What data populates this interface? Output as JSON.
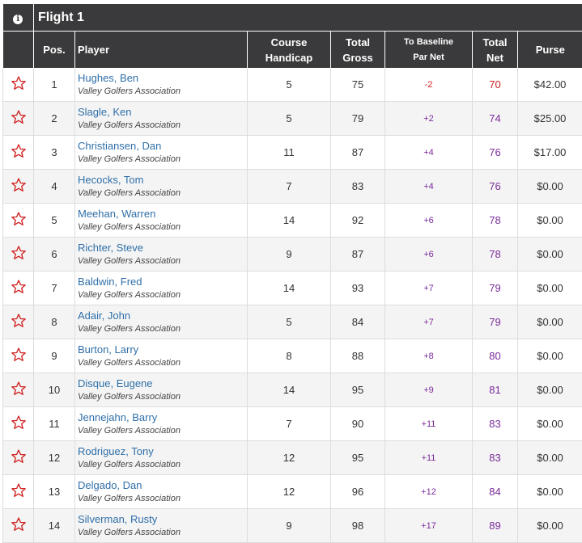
{
  "flight": {
    "title": "Flight 1",
    "info_icon": "info-icon"
  },
  "columns": {
    "pos": "Pos.",
    "player": "Player",
    "course_handicap_1": "Course",
    "course_handicap_2": "Handicap",
    "total_gross_1": "Total",
    "total_gross_2": "Gross",
    "baseline_1": "To Baseline",
    "baseline_2": "Par Net",
    "total_net_1": "Total",
    "total_net_2": "Net",
    "purse": "Purse"
  },
  "colors": {
    "header_bg": "#3a3a3c",
    "link": "#2f6fa8",
    "star": "#d02020",
    "net": "#7a2a9a",
    "negative": "#d02020"
  },
  "rows": [
    {
      "pos": "1",
      "name": "Hughes, Ben",
      "assoc": "Valley Golfers Association",
      "handicap": "5",
      "gross": "75",
      "baseline": "-2",
      "net": "70",
      "purse": "$42.00"
    },
    {
      "pos": "2",
      "name": "Slagle, Ken",
      "assoc": "Valley Golfers Association",
      "handicap": "5",
      "gross": "79",
      "baseline": "+2",
      "net": "74",
      "purse": "$25.00"
    },
    {
      "pos": "3",
      "name": "Christiansen, Dan",
      "assoc": "Valley Golfers Association",
      "handicap": "11",
      "gross": "87",
      "baseline": "+4",
      "net": "76",
      "purse": "$17.00"
    },
    {
      "pos": "4",
      "name": "Hecocks, Tom",
      "assoc": "Valley Golfers Association",
      "handicap": "7",
      "gross": "83",
      "baseline": "+4",
      "net": "76",
      "purse": "$0.00"
    },
    {
      "pos": "5",
      "name": "Meehan, Warren",
      "assoc": "Valley Golfers Association",
      "handicap": "14",
      "gross": "92",
      "baseline": "+6",
      "net": "78",
      "purse": "$0.00"
    },
    {
      "pos": "6",
      "name": "Richter, Steve",
      "assoc": "Valley Golfers Association",
      "handicap": "9",
      "gross": "87",
      "baseline": "+6",
      "net": "78",
      "purse": "$0.00"
    },
    {
      "pos": "7",
      "name": "Baldwin, Fred",
      "assoc": "Valley Golfers Association",
      "handicap": "14",
      "gross": "93",
      "baseline": "+7",
      "net": "79",
      "purse": "$0.00"
    },
    {
      "pos": "8",
      "name": "Adair, John",
      "assoc": "Valley Golfers Association",
      "handicap": "5",
      "gross": "84",
      "baseline": "+7",
      "net": "79",
      "purse": "$0.00"
    },
    {
      "pos": "9",
      "name": "Burton, Larry",
      "assoc": "Valley Golfers Association",
      "handicap": "8",
      "gross": "88",
      "baseline": "+8",
      "net": "80",
      "purse": "$0.00"
    },
    {
      "pos": "10",
      "name": "Disque, Eugene",
      "assoc": "Valley Golfers Association",
      "handicap": "14",
      "gross": "95",
      "baseline": "+9",
      "net": "81",
      "purse": "$0.00"
    },
    {
      "pos": "11",
      "name": "Jennejahn, Barry",
      "assoc": "Valley Golfers Association",
      "handicap": "7",
      "gross": "90",
      "baseline": "+11",
      "net": "83",
      "purse": "$0.00"
    },
    {
      "pos": "12",
      "name": "Rodriguez, Tony",
      "assoc": "Valley Golfers Association",
      "handicap": "12",
      "gross": "95",
      "baseline": "+11",
      "net": "83",
      "purse": "$0.00"
    },
    {
      "pos": "13",
      "name": "Delgado, Dan",
      "assoc": "Valley Golfers Association",
      "handicap": "12",
      "gross": "96",
      "baseline": "+12",
      "net": "84",
      "purse": "$0.00"
    },
    {
      "pos": "14",
      "name": "Silverman, Rusty",
      "assoc": "Valley Golfers Association",
      "handicap": "9",
      "gross": "98",
      "baseline": "+17",
      "net": "89",
      "purse": "$0.00"
    }
  ]
}
